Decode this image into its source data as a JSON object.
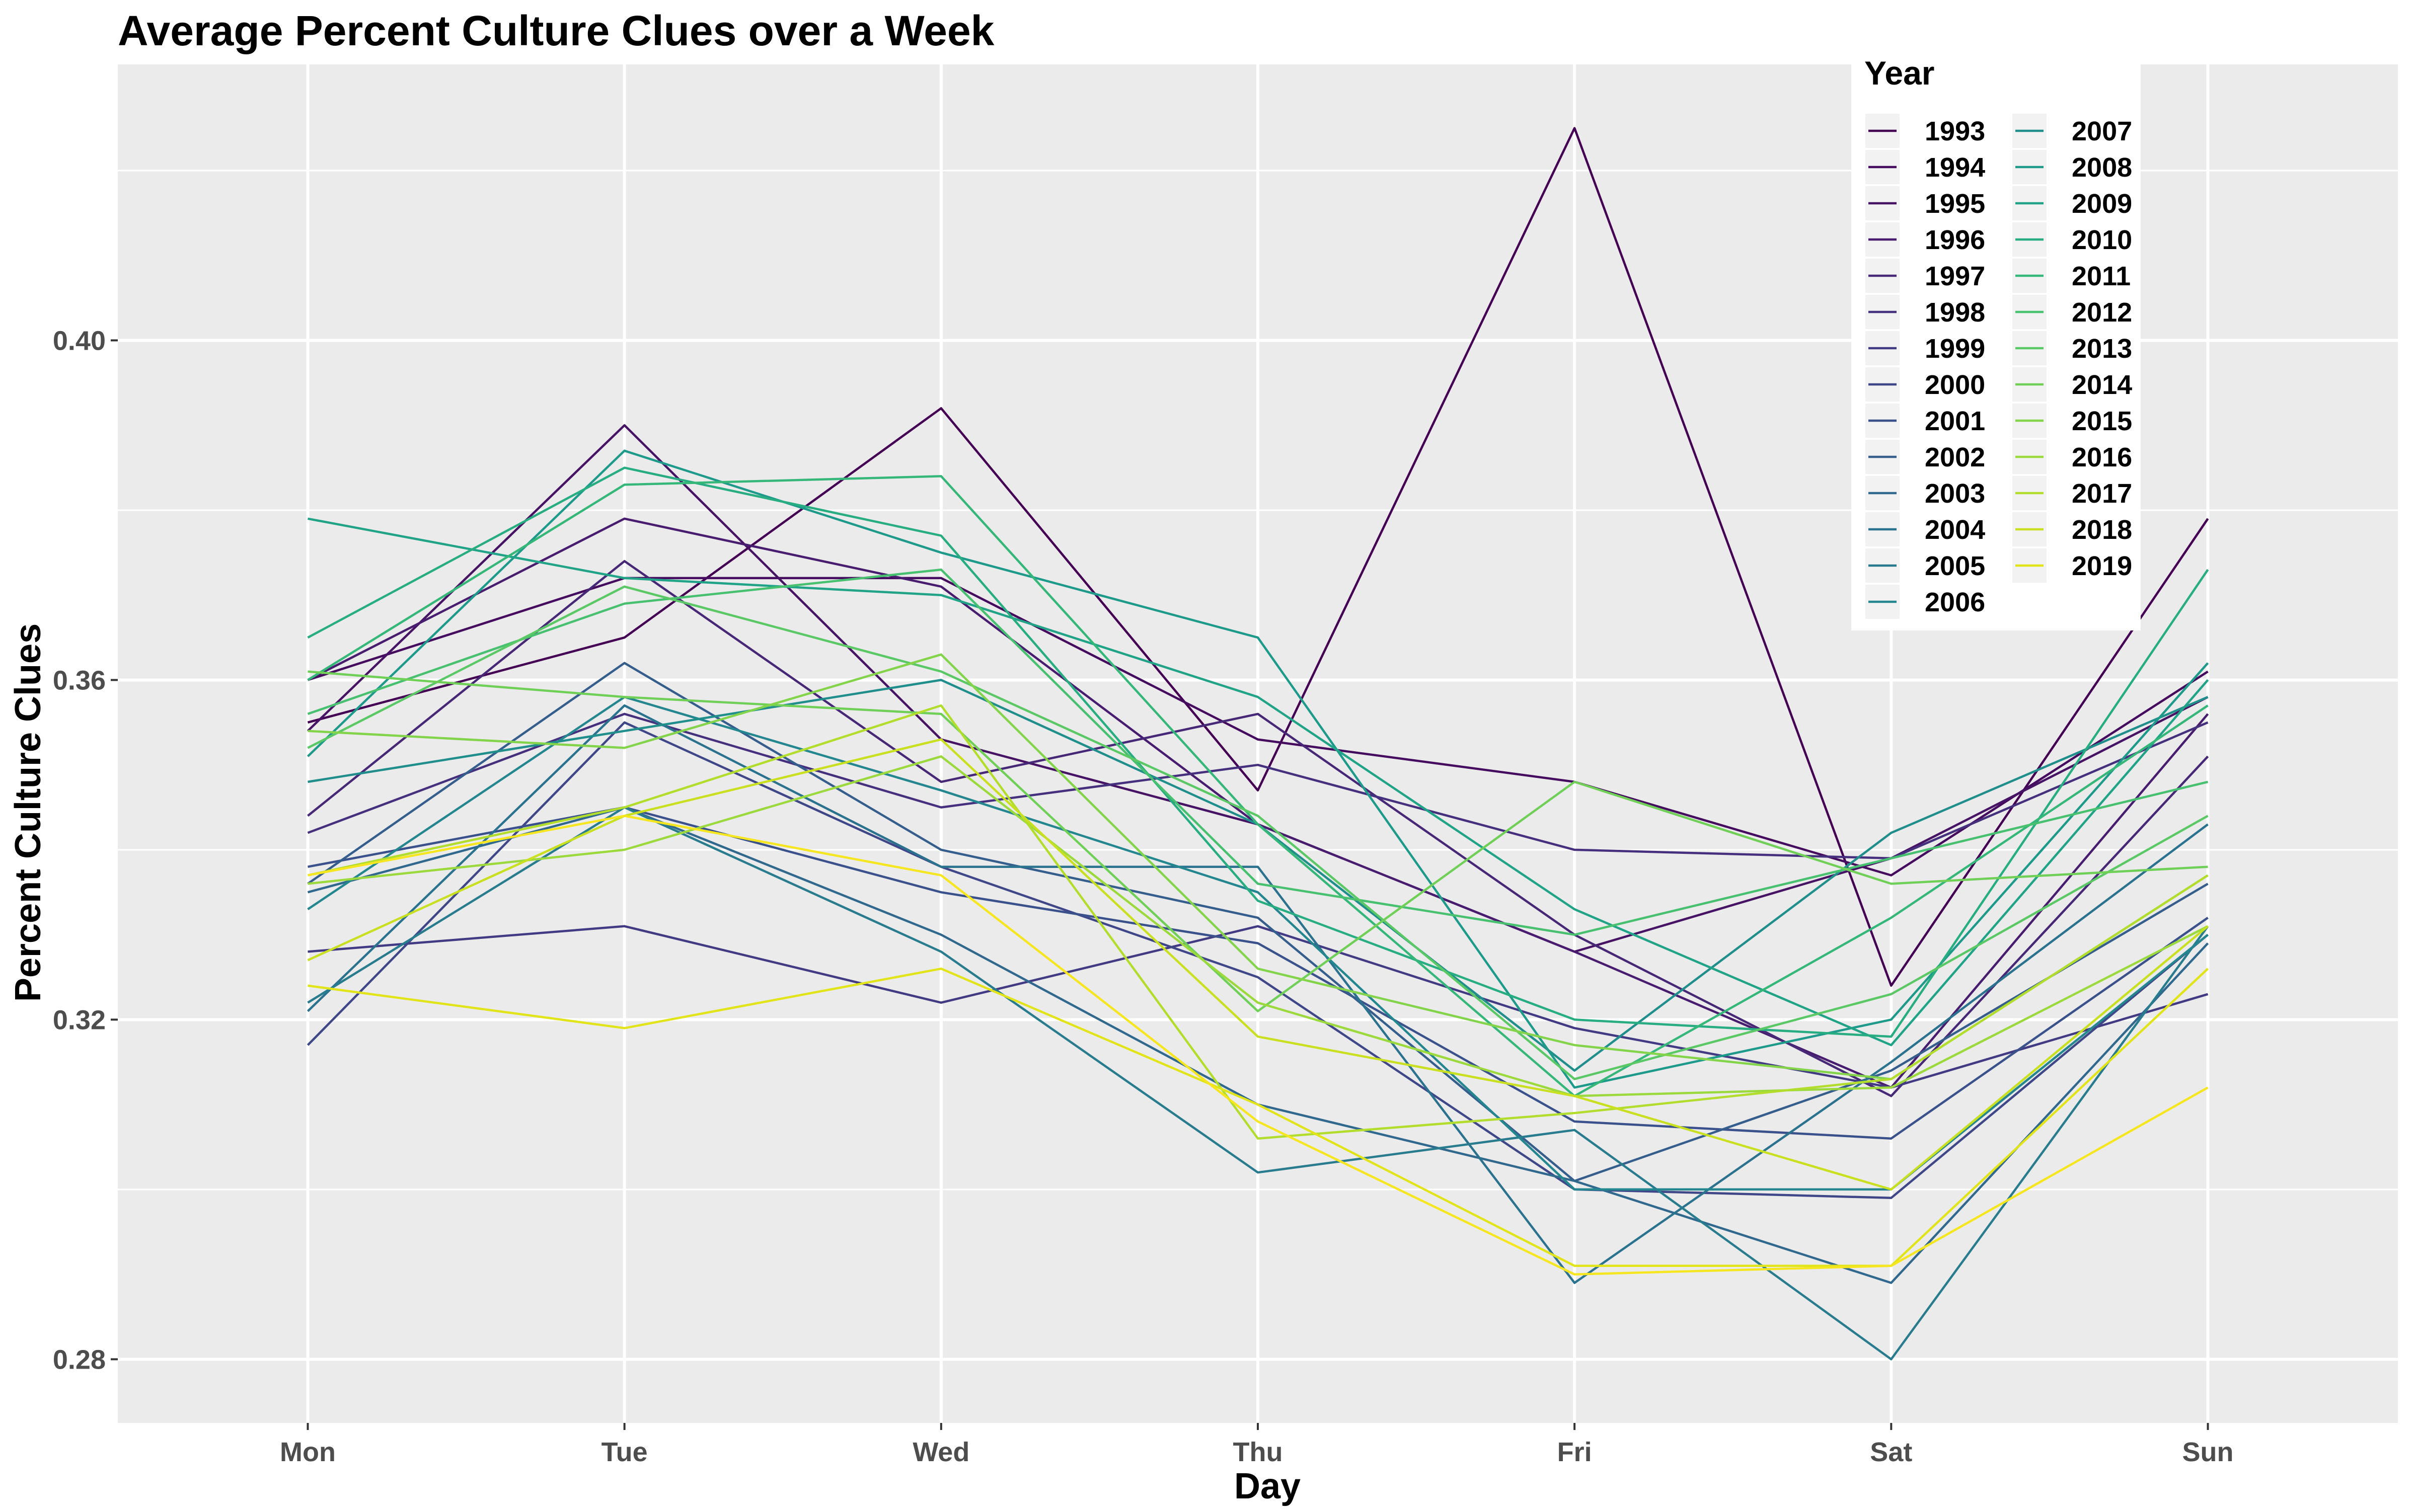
{
  "chart_data": {
    "type": "line",
    "title": "Average Percent Culture Clues over a Week",
    "xlabel": "Day",
    "ylabel": "Percent Culture Clues",
    "categories": [
      "Mon",
      "Tue",
      "Wed",
      "Thu",
      "Fri",
      "Sat",
      "Sun"
    ],
    "ylim": [
      0.2725,
      0.4325
    ],
    "yticks": [
      0.28,
      0.32,
      0.36,
      0.4
    ],
    "ytick_labels": [
      "0.28",
      "0.32",
      "0.36",
      "0.40"
    ],
    "grid": true,
    "legend": {
      "title": "Year",
      "placement": "top-right",
      "columns": 2
    },
    "series": [
      {
        "name": "1993",
        "color": "#440154",
        "values": [
          0.355,
          0.365,
          0.392,
          0.347,
          0.425,
          0.324,
          0.379
        ]
      },
      {
        "name": "1994",
        "color": "#450b5e",
        "values": [
          0.36,
          0.372,
          0.372,
          0.353,
          0.348,
          0.337,
          0.361
        ]
      },
      {
        "name": "1995",
        "color": "#471365",
        "values": [
          0.354,
          0.39,
          0.353,
          0.343,
          0.328,
          0.339,
          0.358
        ]
      },
      {
        "name": "1996",
        "color": "#481d6f",
        "values": [
          0.36,
          0.379,
          0.371,
          0.343,
          0.328,
          0.312,
          0.356
        ]
      },
      {
        "name": "1997",
        "color": "#472877",
        "values": [
          0.344,
          0.374,
          0.348,
          0.356,
          0.33,
          0.311,
          0.351
        ]
      },
      {
        "name": "1998",
        "color": "#45307e",
        "values": [
          0.342,
          0.356,
          0.345,
          0.35,
          0.34,
          0.339,
          0.355
        ]
      },
      {
        "name": "1999",
        "color": "#423a83",
        "values": [
          0.328,
          0.331,
          0.322,
          0.331,
          0.319,
          0.312,
          0.323
        ]
      },
      {
        "name": "2000",
        "color": "#3f4788",
        "values": [
          0.317,
          0.355,
          0.338,
          0.325,
          0.3,
          0.299,
          0.33
        ]
      },
      {
        "name": "2001",
        "color": "#3a518b",
        "values": [
          0.338,
          0.345,
          0.335,
          0.329,
          0.308,
          0.306,
          0.332
        ]
      },
      {
        "name": "2002",
        "color": "#355e8d",
        "values": [
          0.336,
          0.362,
          0.34,
          0.332,
          0.301,
          0.314,
          0.336
        ]
      },
      {
        "name": "2003",
        "color": "#30688e",
        "values": [
          0.335,
          0.345,
          0.33,
          0.31,
          0.301,
          0.289,
          0.329
        ]
      },
      {
        "name": "2004",
        "color": "#2b728e",
        "values": [
          0.321,
          0.357,
          0.338,
          0.338,
          0.289,
          0.315,
          0.343
        ]
      },
      {
        "name": "2005",
        "color": "#287c8e",
        "values": [
          0.322,
          0.345,
          0.328,
          0.302,
          0.307,
          0.28,
          0.331
        ]
      },
      {
        "name": "2006",
        "color": "#24868e",
        "values": [
          0.333,
          0.358,
          0.347,
          0.335,
          0.3,
          0.3,
          0.33
        ]
      },
      {
        "name": "2007",
        "color": "#208f8c",
        "values": [
          0.348,
          0.354,
          0.36,
          0.343,
          0.314,
          0.342,
          0.358
        ]
      },
      {
        "name": "2008",
        "color": "#1e9a8a",
        "values": [
          0.351,
          0.387,
          0.375,
          0.365,
          0.312,
          0.32,
          0.362
        ]
      },
      {
        "name": "2009",
        "color": "#20a386",
        "values": [
          0.379,
          0.372,
          0.37,
          0.358,
          0.333,
          0.317,
          0.36
        ]
      },
      {
        "name": "2010",
        "color": "#27ad81",
        "values": [
          0.365,
          0.385,
          0.377,
          0.334,
          0.32,
          0.318,
          0.373
        ]
      },
      {
        "name": "2011",
        "color": "#35b779",
        "values": [
          0.36,
          0.383,
          0.384,
          0.343,
          0.311,
          0.332,
          0.357
        ]
      },
      {
        "name": "2012",
        "color": "#47c06f",
        "values": [
          0.356,
          0.369,
          0.373,
          0.336,
          0.33,
          0.339,
          0.348
        ]
      },
      {
        "name": "2013",
        "color": "#5ac864",
        "values": [
          0.352,
          0.371,
          0.361,
          0.344,
          0.313,
          0.323,
          0.344
        ]
      },
      {
        "name": "2014",
        "color": "#6fcf57",
        "values": [
          0.361,
          0.358,
          0.356,
          0.321,
          0.348,
          0.336,
          0.338
        ]
      },
      {
        "name": "2015",
        "color": "#84d44b",
        "values": [
          0.354,
          0.352,
          0.363,
          0.326,
          0.317,
          0.313,
          0.337
        ]
      },
      {
        "name": "2016",
        "color": "#9bd93c",
        "values": [
          0.336,
          0.34,
          0.351,
          0.322,
          0.311,
          0.312,
          0.331
        ]
      },
      {
        "name": "2017",
        "color": "#b3dd2c",
        "values": [
          0.337,
          0.345,
          0.357,
          0.306,
          0.309,
          0.313,
          0.337
        ]
      },
      {
        "name": "2018",
        "color": "#c9e020",
        "values": [
          0.327,
          0.344,
          0.353,
          0.318,
          0.311,
          0.3,
          0.331
        ]
      },
      {
        "name": "2019",
        "color": "#e1e418",
        "values": [
          0.324,
          0.319,
          0.326,
          0.31,
          0.291,
          0.291,
          0.326
        ]
      },
      {
        "name": "",
        "color": "#f5e61f",
        "values": [
          0.337,
          0.344,
          0.337,
          0.308,
          0.29,
          0.291,
          0.312
        ]
      }
    ]
  }
}
